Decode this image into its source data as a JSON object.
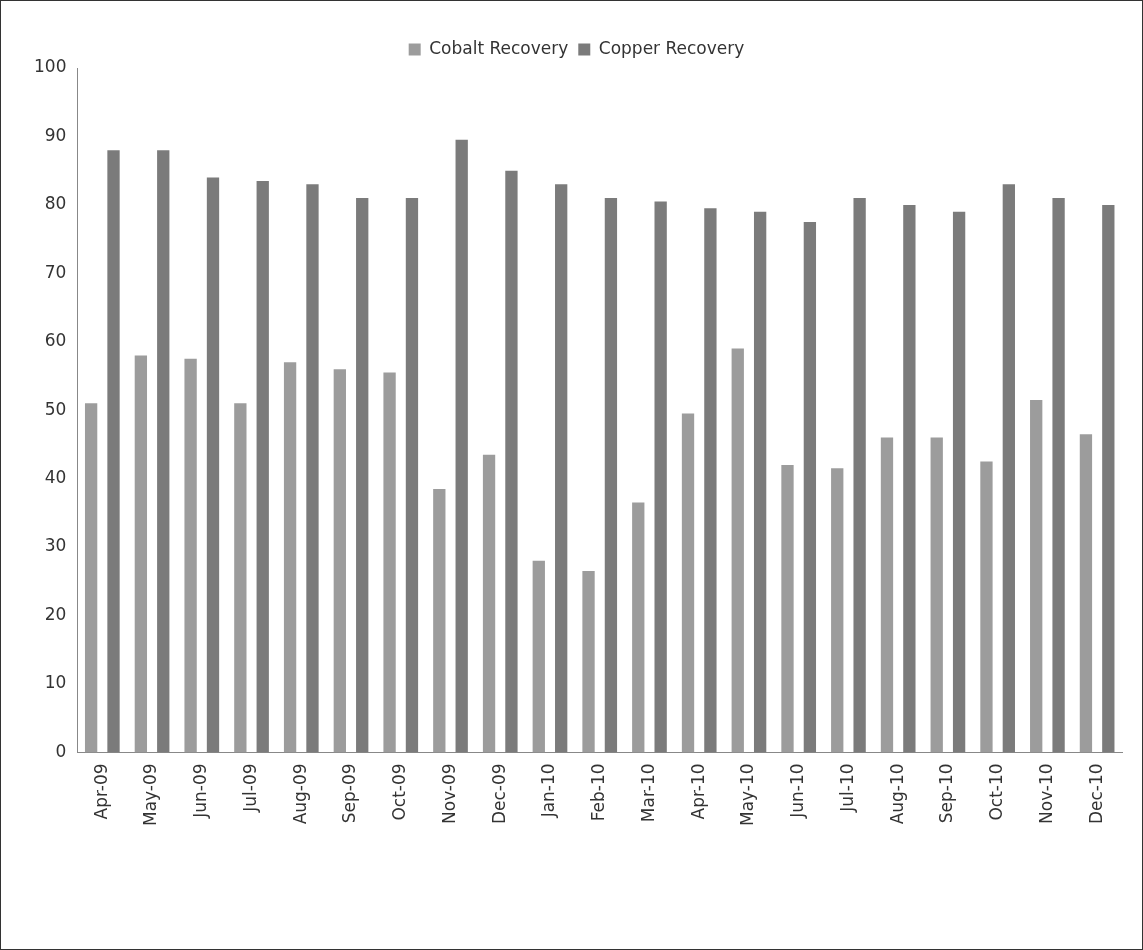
{
  "chart_data": {
    "type": "bar",
    "categories": [
      "Apr-09",
      "May-09",
      "Jun-09",
      "Jul-09",
      "Aug-09",
      "Sep-09",
      "Oct-09",
      "Nov-09",
      "Dec-09",
      "Jan-10",
      "Feb-10",
      "Mar-10",
      "Apr-10",
      "May-10",
      "Jun-10",
      "Jul-10",
      "Aug-10",
      "Sep-10",
      "Oct-10",
      "Nov-10",
      "Dec-10"
    ],
    "series": [
      {
        "name": "Cobalt Recovery",
        "color": "#9c9c9c",
        "values": [
          51,
          58,
          57.5,
          51,
          57,
          56,
          55.5,
          38.5,
          43.5,
          28,
          26.5,
          36.5,
          49.5,
          59,
          42,
          41.5,
          46,
          46,
          42.5,
          51.5,
          46.5
        ]
      },
      {
        "name": "Copper Recovery",
        "color": "#7b7b7b",
        "values": [
          88,
          88,
          84,
          83.5,
          83,
          81,
          81,
          89.5,
          85,
          83,
          81,
          80.5,
          79.5,
          79,
          77.5,
          81,
          80,
          79,
          83,
          81,
          80
        ]
      }
    ],
    "ylim": [
      0,
      100
    ],
    "yticks": [
      0,
      10,
      20,
      30,
      40,
      50,
      60,
      70,
      80,
      90,
      100
    ],
    "grid": false,
    "legend": "top"
  }
}
